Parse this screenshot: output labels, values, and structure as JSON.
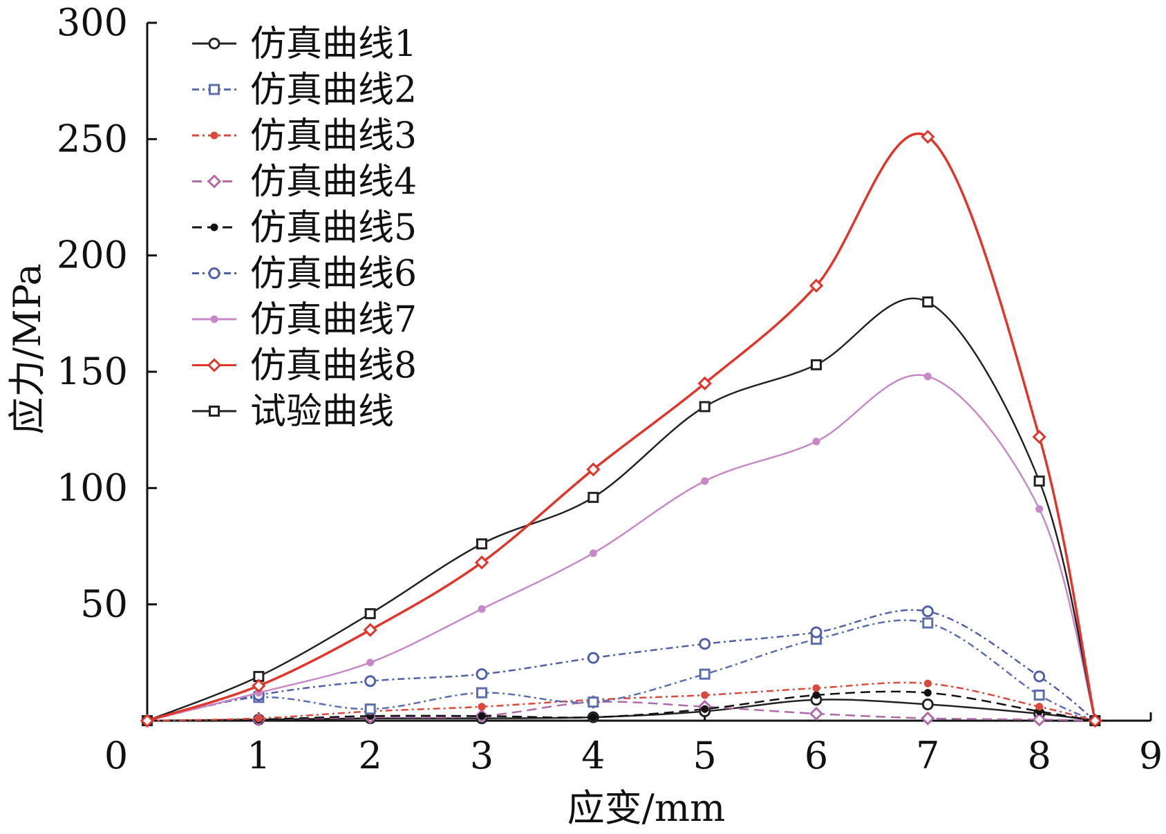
{
  "chart_data": {
    "type": "line",
    "title": "",
    "xlabel": "应变/mm",
    "ylabel": "应力/MPa",
    "xlim": [
      0,
      9
    ],
    "ylim": [
      0,
      300
    ],
    "xticks": [
      "0",
      "1",
      "2",
      "3",
      "4",
      "5",
      "6",
      "7",
      "8",
      "9"
    ],
    "yticks": [
      "50",
      "100",
      "150",
      "200",
      "250",
      "300"
    ],
    "grid": false,
    "legend": "top-left",
    "x": [
      0,
      1,
      2,
      3,
      4,
      5,
      6,
      7,
      8,
      8.5
    ],
    "series": [
      {
        "name": "仿真曲线1",
        "color": "#222222",
        "marker": "circle",
        "dash": "solid",
        "values": [
          0,
          0.5,
          1,
          1,
          1.5,
          4,
          9,
          7,
          3,
          0
        ]
      },
      {
        "name": "仿真曲线2",
        "color": "#5b6fb0",
        "marker": "square",
        "dash": "dotdash",
        "values": [
          0,
          10,
          5,
          12,
          8,
          20,
          35,
          42,
          11,
          0
        ]
      },
      {
        "name": "仿真曲线3",
        "color": "#d9493c",
        "marker": "dot",
        "dash": "dotdash",
        "values": [
          0,
          1,
          4,
          6,
          9,
          11,
          14,
          16,
          6,
          0
        ]
      },
      {
        "name": "仿真曲线4",
        "color": "#b06aa8",
        "marker": "diamond",
        "dash": "dash",
        "values": [
          0,
          0.5,
          1.5,
          2,
          8,
          6,
          3,
          1,
          0.5,
          0
        ]
      },
      {
        "name": "仿真曲线5",
        "color": "#111111",
        "marker": "dot",
        "dash": "dash",
        "values": [
          0,
          0.5,
          2,
          2,
          1.5,
          5,
          11,
          12,
          4,
          0
        ]
      },
      {
        "name": "仿真曲线6",
        "color": "#5060a8",
        "marker": "circle",
        "dash": "dotdash",
        "values": [
          0,
          11,
          17,
          20,
          27,
          33,
          38,
          47,
          19,
          0
        ]
      },
      {
        "name": "仿真曲线7",
        "color": "#c888c8",
        "marker": "dot",
        "dash": "solid",
        "values": [
          0,
          12,
          25,
          48,
          72,
          103,
          120,
          148,
          91,
          0
        ]
      },
      {
        "name": "仿真曲线8",
        "color": "#e0352b",
        "marker": "diamond",
        "dash": "solid",
        "values": [
          0,
          15,
          39,
          68,
          108,
          145,
          187,
          251,
          122,
          0
        ]
      },
      {
        "name": "试验曲线",
        "color": "#222222",
        "marker": "square",
        "dash": "solid",
        "values": [
          0,
          19,
          46,
          76,
          96,
          135,
          153,
          180,
          103,
          0
        ]
      }
    ]
  }
}
